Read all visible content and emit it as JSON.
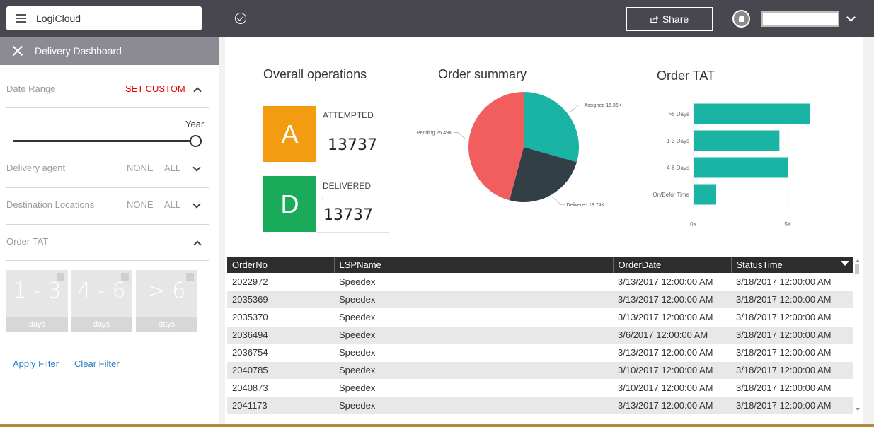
{
  "header": {
    "app_name": "LogiCloud",
    "share_label": "Share",
    "user_name": ""
  },
  "sidebar": {
    "title": "Delivery Dashboard",
    "date_range": {
      "label": "Date Range",
      "action": "SET CUSTOM",
      "action_color": "#e60000"
    },
    "slider": {
      "label": "Year",
      "value": 1.0
    },
    "delivery_agent": {
      "label": "Delivery agent",
      "none": "NONE",
      "all": "ALL"
    },
    "destination": {
      "label": "Destination Locations",
      "none": "NONE",
      "all": "ALL"
    },
    "order_tat": {
      "label": "Order TAT",
      "tiles": [
        {
          "value": "1 - 3",
          "unit": "days"
        },
        {
          "value": "4 - 6",
          "unit": "days"
        },
        {
          "value": "> 6",
          "unit": "days"
        }
      ]
    },
    "apply_label": "Apply Filter",
    "clear_label": "Clear Filter"
  },
  "overall": {
    "title": "Overall operations",
    "attempted": {
      "letter": "A",
      "label": "ATTEMPTED",
      "value": "13737",
      "color": "#f39c12"
    },
    "delivered": {
      "letter": "D",
      "label": "DELIVERED",
      "dot": ".",
      "value": "13737",
      "color": "#1aab5a"
    }
  },
  "order_summary": {
    "title": "Order summary"
  },
  "order_tat_chart": {
    "title": "Order TAT"
  },
  "chart_data": [
    {
      "type": "pie",
      "title": "Order summary",
      "slices": [
        {
          "label": "Assigned",
          "display": "Assigned 16.36K",
          "value": 16.36,
          "color": "#1ab4a5"
        },
        {
          "label": "Delivered",
          "display": "Delivered 13.74K",
          "value": 13.74,
          "color": "#333f46"
        },
        {
          "label": "Pending",
          "display": "Pending 25.49K",
          "value": 25.49,
          "color": "#f25e5e"
        }
      ]
    },
    {
      "type": "bar",
      "orientation": "horizontal",
      "title": "Order TAT",
      "categories": [
        ">6 Days",
        "1-3 Days",
        "4-6 Days",
        "On/Befor Time"
      ],
      "values": [
        6150,
        4550,
        5000,
        1200
      ],
      "xlim": [
        0,
        6000
      ],
      "ticks": [
        "0K",
        "5K"
      ],
      "tick_values": [
        0,
        5000
      ],
      "color": "#1ab4a5"
    }
  ],
  "table": {
    "columns": [
      "OrderNo",
      "LSPName",
      "OrderDate",
      "StatusTime"
    ],
    "rows": [
      [
        "2022972",
        "Speedex",
        "3/13/2017 12:00:00 AM",
        "3/18/2017 12:00:00 AM"
      ],
      [
        "2035369",
        "Speedex",
        "3/13/2017 12:00:00 AM",
        "3/18/2017 12:00:00 AM"
      ],
      [
        "2035370",
        "Speedex",
        "3/13/2017 12:00:00 AM",
        "3/18/2017 12:00:00 AM"
      ],
      [
        "2036494",
        "Speedex",
        "3/6/2017 12:00:00 AM",
        "3/18/2017 12:00:00 AM"
      ],
      [
        "2036754",
        "Speedex",
        "3/13/2017 12:00:00 AM",
        "3/18/2017 12:00:00 AM"
      ],
      [
        "2040785",
        "Speedex",
        "3/10/2017 12:00:00 AM",
        "3/18/2017 12:00:00 AM"
      ],
      [
        "2040873",
        "Speedex",
        "3/10/2017 12:00:00 AM",
        "3/18/2017 12:00:00 AM"
      ],
      [
        "2041173",
        "Speedex",
        "3/13/2017 12:00:00 AM",
        "3/18/2017 12:00:00 AM"
      ]
    ]
  }
}
